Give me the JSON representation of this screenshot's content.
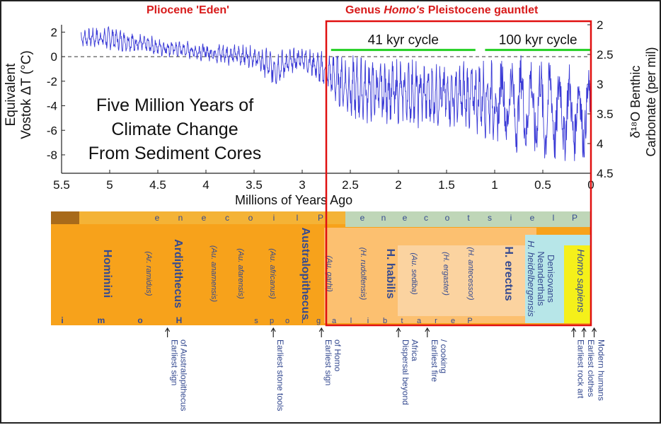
{
  "header": {
    "pliocene": "Pliocene 'Eden'",
    "gauntlet_prefix": "Genus ",
    "gauntlet_italic": "Homo's",
    "gauntlet_suffix": " Pleistocene gauntlet"
  },
  "chart_data": {
    "type": "line",
    "title": "Five Million Years of Climate Change From Sediment Cores",
    "title_lines": [
      "Five Million Years of",
      "Climate Change",
      "From Sediment Cores"
    ],
    "xlabel": "Millions of Years Ago",
    "ylabel_left_lines": [
      "Equivalent",
      "Vostok ΔT (°C)"
    ],
    "ylabel_right_lines": [
      "δ¹⁸O Benthic",
      "Carbonate (per mil)"
    ],
    "xlim": [
      5.5,
      0
    ],
    "xticks": [
      "5.5",
      "5",
      "4.5",
      "4",
      "3.5",
      "3",
      "2.5",
      "2",
      "1.5",
      "1",
      "0.5",
      "0"
    ],
    "xtick_values": [
      5.5,
      5,
      4.5,
      4,
      3.5,
      3,
      2.5,
      2,
      1.5,
      1,
      0.5,
      0
    ],
    "ylim_left": [
      -9.5,
      2.6
    ],
    "yticks_left": [
      "2",
      "0",
      "-2",
      "-4",
      "-6",
      "-8"
    ],
    "ytick_values_left": [
      2,
      0,
      -2,
      -4,
      -6,
      -8
    ],
    "ylim_right": [
      4.5,
      2.0
    ],
    "yticks_right": [
      "2",
      "2.5",
      "3",
      "3.5",
      "4",
      "4.5"
    ],
    "ytick_values_right": [
      2,
      2.5,
      3,
      3.5,
      4,
      4.5
    ],
    "reference_line_y": 0,
    "cycle_annotations": [
      {
        "label": "41 kyr cycle",
        "x_start": 2.7,
        "x_end": 1.2
      },
      {
        "label": "100 kyr cycle",
        "x_start": 1.1,
        "x_end": 0.0
      }
    ],
    "highlight_range": [
      2.75,
      0.0
    ],
    "series": [
      {
        "envelope": [
          {
            "x": 5.3,
            "hi": 2.3,
            "lo": 0.8
          },
          {
            "x": 5.0,
            "hi": 2.5,
            "lo": 0.5
          },
          {
            "x": 4.5,
            "hi": 1.6,
            "lo": 0.0
          },
          {
            "x": 4.0,
            "hi": 1.2,
            "lo": -0.5
          },
          {
            "x": 3.5,
            "hi": 1.0,
            "lo": -1.0
          },
          {
            "x": 3.3,
            "hi": 0.6,
            "lo": -2.6
          },
          {
            "x": 3.0,
            "hi": 0.8,
            "lo": -1.0
          },
          {
            "x": 2.75,
            "hi": 0.5,
            "lo": -3.0
          },
          {
            "x": 2.5,
            "hi": 0.2,
            "lo": -5.5
          },
          {
            "x": 2.0,
            "hi": 0.0,
            "lo": -5.8
          },
          {
            "x": 1.5,
            "hi": -0.3,
            "lo": -6.0
          },
          {
            "x": 1.0,
            "hi": 0.2,
            "lo": -7.0
          },
          {
            "x": 0.5,
            "hi": 0.5,
            "lo": -9.0
          },
          {
            "x": 0.0,
            "hi": -1.0,
            "lo": -8.5
          }
        ]
      }
    ]
  },
  "timeline": {
    "taxa_horizontal": [
      {
        "label": "Hominini",
        "bold": true
      },
      {
        "label": "Ardipithecus",
        "bold": true
      },
      {
        "label": "Australopithecus",
        "bold": true
      },
      {
        "label": "H. habilis",
        "bold": true
      },
      {
        "label": "H. erectus",
        "bold": true
      }
    ],
    "taxa_italic": [
      {
        "label": "(Ar. ramidus)"
      },
      {
        "label": "(Au. anamensis)"
      },
      {
        "label": "(Au. afarensis)"
      },
      {
        "label": "(Au. africanus)"
      },
      {
        "label": "(Au. garhi)"
      },
      {
        "label": "(H. rudolfensis)"
      },
      {
        "label": "(Au. sediba)"
      },
      {
        "label": "(H. ergaster)"
      },
      {
        "label": "(H. antecessor)"
      }
    ],
    "late_taxa": {
      "heidelbergensis": "H. heidelbergensis",
      "neanderthals": "Neanderthals",
      "denisovans": "Denisovans",
      "sapiens": "Homo sapiens"
    },
    "epoch_top_letters": [
      "e",
      "n",
      "e",
      "c",
      "o",
      "i",
      "l",
      "P"
    ],
    "epoch_top_letters_b": [
      "e",
      "n",
      "e",
      "c",
      "o",
      "t",
      "s",
      "i",
      "e",
      "l",
      "P"
    ],
    "bottom_letters": [
      "i",
      "m",
      "o",
      "H"
    ],
    "bottom_letters_b": [
      "s",
      "p",
      "o",
      "r",
      "g"
    ],
    "bottom_letters_c": [
      "a",
      "l",
      "i",
      "b",
      "t",
      "a",
      "r",
      "e",
      "P"
    ],
    "events": [
      {
        "x": 4.4,
        "label": "Earliest sign of Australopithecus"
      },
      {
        "x": 3.3,
        "label": "Earliest stone tools"
      },
      {
        "x": 2.8,
        "label": "Earliest sign of Homo"
      },
      {
        "x": 2.0,
        "label": "Dispersal beyond Africa"
      },
      {
        "x": 1.7,
        "label": "Earliest fire / cooking"
      },
      {
        "x": 0.12,
        "label": "Earliest rock art"
      },
      {
        "x": 0.08,
        "label": "Earliest clothes"
      },
      {
        "x": 0.04,
        "label": "Modern humans"
      }
    ]
  },
  "colors": {
    "line": "#3a3ad6",
    "highlight": "#e01010",
    "green": "#22d022",
    "orange": "#f7a21b",
    "light_orange": "#fcc070",
    "tan": "#fbd3a0",
    "teal": "#b7e6e8",
    "yellow": "#f5f01a",
    "timeline_text": "#354a90"
  }
}
